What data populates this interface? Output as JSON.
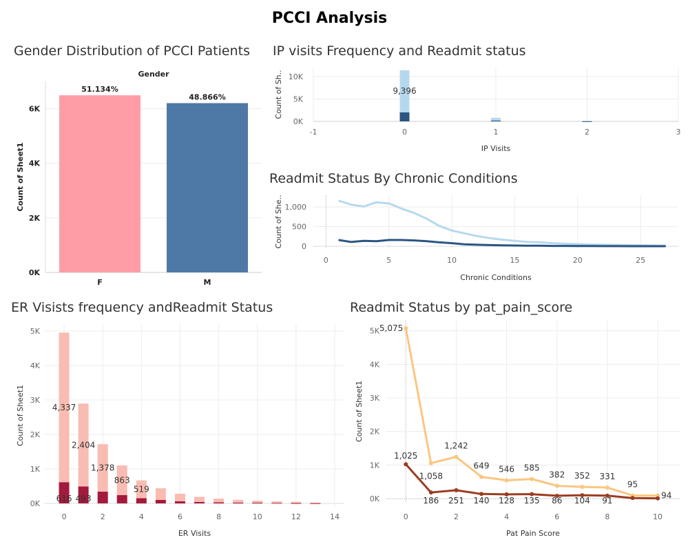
{
  "dashboard": {
    "title": "PCCI Analysis"
  },
  "colors": {
    "female": "#FF9DA7",
    "male": "#4E79A7",
    "ip_light": "#B6D8EE",
    "ip_dark": "#2B5583",
    "er_light": "#F9BCB2",
    "er_dark": "#A41A3C",
    "pain_light": "#FAC67F",
    "pain_dark": "#9C3C20"
  },
  "chart_data": [
    {
      "id": "gender",
      "type": "bar",
      "title": "Gender  Distribution of PCCI Patients",
      "header": "Gender",
      "categories": [
        "F",
        "M"
      ],
      "values": [
        6490,
        6203
      ],
      "data_labels": [
        "51.134%",
        "48.866%"
      ],
      "xlabel": "",
      "ylabel": "Count of Sheet1",
      "ylim": [
        0,
        7000
      ],
      "yticks": [
        0,
        2000,
        4000,
        6000
      ],
      "ytick_labels": [
        "0K",
        "2K",
        "4K",
        "6K"
      ]
    },
    {
      "id": "ip",
      "type": "bar",
      "stacked": true,
      "title": "IP visits Frequency  and Readmit status",
      "xlabel": "IP Visits",
      "ylabel": "Count of Sh..",
      "x": [
        0,
        1,
        2
      ],
      "series": [
        {
          "values": [
            9396,
            600,
            150
          ]
        },
        {
          "values": [
            2000,
            200,
            20
          ]
        }
      ],
      "data_labels": [
        {
          "x": 0,
          "text": "9,396"
        }
      ],
      "xlim": [
        -1,
        3
      ],
      "xticks": [
        -1,
        0,
        1,
        2,
        3
      ],
      "ylim": [
        0,
        12000
      ],
      "yticks": [
        0,
        5000,
        10000
      ],
      "ytick_labels": [
        "0K",
        "5K",
        "10K"
      ]
    },
    {
      "id": "chronic",
      "type": "line",
      "title": "Readmit Status By Chronic Conditions",
      "xlabel": "Chronic Conditions",
      "ylabel": "Count of She..",
      "x": [
        1,
        2,
        3,
        4,
        5,
        6,
        7,
        8,
        9,
        10,
        11,
        12,
        13,
        14,
        15,
        16,
        17,
        18,
        19,
        20,
        21,
        22,
        23,
        24,
        25,
        26,
        27
      ],
      "series": [
        {
          "values": [
            1160,
            1060,
            1010,
            1120,
            1090,
            960,
            850,
            700,
            520,
            400,
            330,
            260,
            210,
            170,
            140,
            110,
            100,
            80,
            65,
            55,
            45,
            40,
            35,
            30,
            25,
            20,
            15
          ]
        },
        {
          "values": [
            160,
            110,
            140,
            130,
            160,
            160,
            150,
            130,
            100,
            80,
            50,
            40,
            30,
            25,
            20,
            15,
            15,
            10,
            10,
            8,
            6,
            5,
            4,
            3,
            3,
            2,
            2
          ]
        }
      ],
      "xlim": [
        -1,
        28
      ],
      "xticks": [
        0,
        5,
        10,
        15,
        20,
        25
      ],
      "ylim": [
        -50,
        1300
      ],
      "yticks": [
        0,
        500,
        1000
      ]
    },
    {
      "id": "er",
      "type": "bar",
      "stacked": true,
      "title": "ER Visists frequency andReadmit Status",
      "xlabel": "ER Visits",
      "ylabel": "Count of Sheet1",
      "x": [
        0,
        1,
        2,
        3,
        4,
        5,
        6,
        7,
        8,
        9,
        10,
        11,
        12,
        13
      ],
      "series": [
        {
          "values": [
            4337,
            2404,
            1378,
            863,
            519,
            340,
            220,
            150,
            110,
            80,
            60,
            45,
            35,
            25
          ]
        },
        {
          "values": [
            616,
            493,
            340,
            240,
            150,
            100,
            60,
            40,
            30,
            25,
            20,
            15,
            10,
            5
          ]
        }
      ],
      "data_labels": [
        {
          "x": 0,
          "series": 0,
          "text": "4,337"
        },
        {
          "x": 1,
          "series": 0,
          "text": "2,404"
        },
        {
          "x": 2,
          "series": 0,
          "text": "1,378"
        },
        {
          "x": 3,
          "series": 0,
          "text": "863"
        },
        {
          "x": 4,
          "series": 0,
          "text": "519"
        },
        {
          "x": 0,
          "series": 1,
          "text": "616"
        },
        {
          "x": 1,
          "series": 1,
          "text": "493"
        }
      ],
      "xlim": [
        -1,
        14.5
      ],
      "xticks": [
        0,
        2,
        4,
        6,
        8,
        10,
        12,
        14
      ],
      "ylim": [
        -100,
        5200
      ],
      "yticks": [
        0,
        1000,
        2000,
        3000,
        4000,
        5000
      ],
      "ytick_labels": [
        "0K",
        "1K",
        "2K",
        "3K",
        "4K",
        "5K"
      ]
    },
    {
      "id": "pain",
      "type": "line",
      "title": "Readmit Status by pat_pain_score",
      "xlabel": "Pat Pain Score",
      "ylabel": "Count of Sheet1",
      "x": [
        0,
        1,
        2,
        3,
        4,
        5,
        6,
        7,
        8,
        9,
        10
      ],
      "series": [
        {
          "values": [
            5075,
            1058,
            1242,
            649,
            546,
            585,
            382,
            352,
            331,
            95,
            94
          ]
        },
        {
          "values": [
            1025,
            186,
            251,
            140,
            128,
            135,
            86,
            104,
            91,
            20,
            10
          ]
        }
      ],
      "data_labels": [
        {
          "x": 0,
          "series": 0,
          "text": "5,075"
        },
        {
          "x": 1,
          "series": 0,
          "text": "1,058"
        },
        {
          "x": 2,
          "series": 0,
          "text": "1,242"
        },
        {
          "x": 3,
          "series": 0,
          "text": "649"
        },
        {
          "x": 4,
          "series": 0,
          "text": "546"
        },
        {
          "x": 5,
          "series": 0,
          "text": "585"
        },
        {
          "x": 6,
          "series": 0,
          "text": "382"
        },
        {
          "x": 7,
          "series": 0,
          "text": "352"
        },
        {
          "x": 8,
          "series": 0,
          "text": "331"
        },
        {
          "x": 9,
          "series": 0,
          "text": "95"
        },
        {
          "x": 10,
          "series": 0,
          "text": "94"
        },
        {
          "x": 0,
          "series": 1,
          "text": "1,025"
        },
        {
          "x": 1,
          "series": 1,
          "text": "186"
        },
        {
          "x": 2,
          "series": 1,
          "text": "251"
        },
        {
          "x": 3,
          "series": 1,
          "text": "140"
        },
        {
          "x": 4,
          "series": 1,
          "text": "128"
        },
        {
          "x": 5,
          "series": 1,
          "text": "135"
        },
        {
          "x": 6,
          "series": 1,
          "text": "86"
        },
        {
          "x": 7,
          "series": 1,
          "text": "104"
        },
        {
          "x": 8,
          "series": 1,
          "text": "91"
        }
      ],
      "xlim": [
        -0.8,
        10.9
      ],
      "xticks": [
        0,
        2,
        4,
        6,
        8,
        10
      ],
      "ylim": [
        -100,
        5300
      ],
      "yticks": [
        0,
        1000,
        2000,
        3000,
        4000,
        5000
      ],
      "ytick_labels": [
        "0K",
        "1K",
        "2K",
        "3K",
        "4K",
        "5K"
      ]
    }
  ]
}
